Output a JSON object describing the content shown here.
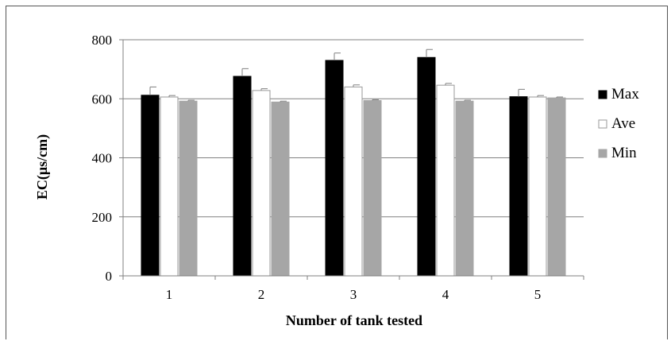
{
  "chart_data": {
    "type": "bar",
    "title": "",
    "xlabel": "Number of tank tested",
    "ylabel": "EC(μs/cm)",
    "categories": [
      "1",
      "2",
      "3",
      "4",
      "5"
    ],
    "ylim": [
      0,
      800
    ],
    "yticks": [
      0,
      200,
      400,
      600,
      800
    ],
    "grid": true,
    "legend_position": "right",
    "series": [
      {
        "name": "Max",
        "color": "#000000",
        "values": [
          612,
          676,
          730,
          740,
          607
        ],
        "errors": [
          28,
          26,
          25,
          27,
          25
        ]
      },
      {
        "name": "Ave",
        "color": "#ffffff",
        "values": [
          606,
          628,
          640,
          646,
          606
        ],
        "errors": [
          5,
          6,
          7,
          6,
          5
        ]
      },
      {
        "name": "Min",
        "color": "#a6a6a6",
        "values": [
          592,
          589,
          594,
          592,
          603
        ],
        "errors": [
          3,
          3,
          3,
          3,
          3
        ]
      }
    ]
  }
}
